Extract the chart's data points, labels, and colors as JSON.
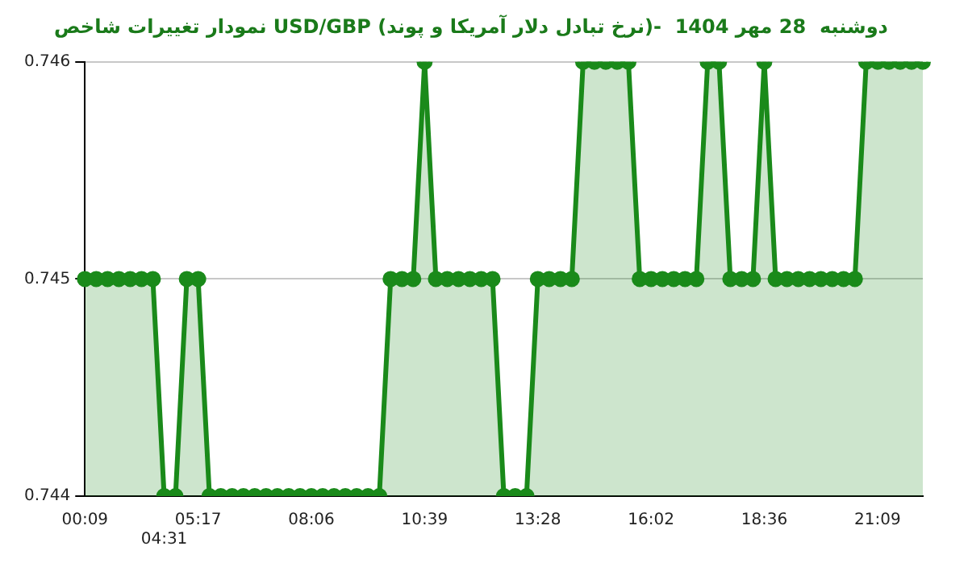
{
  "chart_data": {
    "type": "area",
    "title": "نمودار تغییرات شاخص USD/GBP (نرخ تبادل دلار آمریکا و پوند)-  دوشنبه  28 مهر 1404",
    "categories": [
      "00:09",
      null,
      null,
      null,
      null,
      null,
      null,
      "04:31",
      null,
      null,
      "05:17",
      null,
      null,
      null,
      null,
      null,
      null,
      null,
      null,
      null,
      "08:06",
      null,
      null,
      null,
      null,
      null,
      null,
      null,
      null,
      null,
      "10:39",
      null,
      null,
      null,
      null,
      null,
      null,
      null,
      null,
      null,
      "13:28",
      null,
      null,
      null,
      null,
      null,
      null,
      null,
      null,
      null,
      "16:02",
      null,
      null,
      null,
      null,
      null,
      null,
      null,
      null,
      null,
      "18:36",
      null,
      null,
      null,
      null,
      null,
      null,
      null,
      null,
      null,
      "21:09",
      null,
      null,
      null,
      null
    ],
    "series": [
      {
        "color": "#1a8a1a",
        "values": [
          0.745,
          0.745,
          0.745,
          0.745,
          0.745,
          0.745,
          0.745,
          0.744,
          0.744,
          0.745,
          0.745,
          0.744,
          0.744,
          0.744,
          0.744,
          0.744,
          0.744,
          0.744,
          0.744,
          0.744,
          0.744,
          0.744,
          0.744,
          0.744,
          0.744,
          0.744,
          0.744,
          0.745,
          0.745,
          0.745,
          0.746,
          0.745,
          0.745,
          0.745,
          0.745,
          0.745,
          0.745,
          0.744,
          0.744,
          0.744,
          0.745,
          0.745,
          0.745,
          0.745,
          0.746,
          0.746,
          0.746,
          0.746,
          0.746,
          0.745,
          0.745,
          0.745,
          0.745,
          0.745,
          0.745,
          0.746,
          0.746,
          0.745,
          0.745,
          0.745,
          0.746,
          0.745,
          0.745,
          0.745,
          0.745,
          0.745,
          0.745,
          0.745,
          0.745,
          0.746,
          0.746,
          0.746,
          0.746,
          0.746,
          0.746
        ]
      }
    ],
    "ylim": [
      0.744,
      0.746
    ],
    "yticks": [
      0.744,
      0.745,
      0.746
    ],
    "grid": "y",
    "marker": "circle",
    "legend": false
  }
}
